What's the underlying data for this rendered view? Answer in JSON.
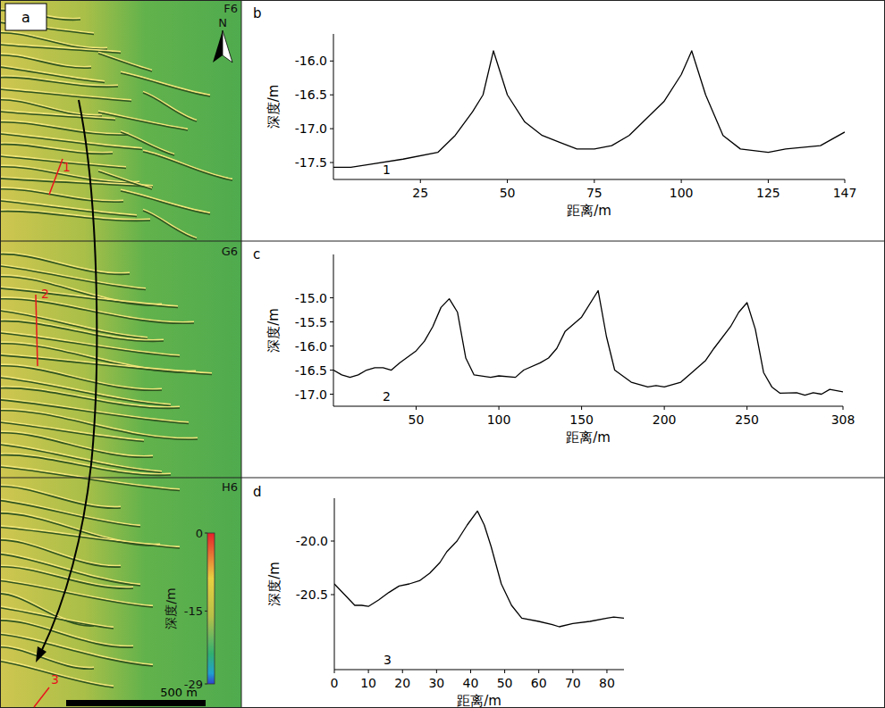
{
  "chart_data": [
    {
      "type": "line",
      "panel_label": "b",
      "annotations": [
        "1"
      ],
      "x_label": "距离/m",
      "y_label": "深度/m",
      "grid": false,
      "x": [
        0,
        5,
        10,
        20,
        30,
        35,
        40,
        43,
        46,
        50,
        55,
        60,
        65,
        70,
        75,
        80,
        85,
        90,
        95,
        100,
        103,
        107,
        112,
        117,
        125,
        130,
        140,
        147
      ],
      "series": [
        {
          "color": "#000000",
          "values": [
            -17.57,
            -17.57,
            -17.53,
            -17.45,
            -17.35,
            -17.1,
            -16.75,
            -16.5,
            -15.85,
            -16.5,
            -16.9,
            -17.1,
            -17.2,
            -17.3,
            -17.3,
            -17.25,
            -17.1,
            -16.85,
            -16.6,
            -16.2,
            -15.85,
            -16.5,
            -17.1,
            -17.3,
            -17.35,
            -17.3,
            -17.25,
            -17.05
          ]
        }
      ],
      "xlim": [
        0,
        147
      ],
      "xticks": [
        25,
        50,
        75,
        100,
        125,
        147
      ],
      "ylim": [
        -17.75,
        -15.6
      ],
      "yticks": [
        {
          "value": -16,
          "label": "-16.0"
        },
        -16.5,
        {
          "value": -17,
          "label": "-17.0"
        },
        -17.5
      ]
    },
    {
      "type": "line",
      "panel_label": "c",
      "annotations": [
        "2"
      ],
      "x_label": "距离/m",
      "y_label": "深度/m",
      "grid": false,
      "x": [
        0,
        5,
        10,
        15,
        20,
        25,
        30,
        35,
        40,
        50,
        55,
        60,
        65,
        70,
        75,
        80,
        85,
        95,
        100,
        110,
        115,
        125,
        130,
        135,
        140,
        150,
        160,
        165,
        170,
        180,
        190,
        195,
        200,
        210,
        215,
        225,
        230,
        240,
        245,
        250,
        255,
        260,
        265,
        270,
        280,
        285,
        290,
        295,
        300,
        308
      ],
      "series": [
        {
          "color": "#000000",
          "values": [
            -16.5,
            -16.6,
            -16.65,
            -16.6,
            -16.5,
            -16.45,
            -16.45,
            -16.5,
            -16.35,
            -16.1,
            -15.9,
            -15.6,
            -15.2,
            -15.02,
            -15.3,
            -16.25,
            -16.6,
            -16.65,
            -16.62,
            -16.65,
            -16.5,
            -16.35,
            -16.25,
            -16.05,
            -15.7,
            -15.4,
            -14.85,
            -15.8,
            -16.5,
            -16.75,
            -16.85,
            -16.82,
            -16.85,
            -16.75,
            -16.6,
            -16.3,
            -16.05,
            -15.6,
            -15.3,
            -15.1,
            -15.65,
            -16.55,
            -16.85,
            -16.98,
            -16.97,
            -17.02,
            -16.97,
            -17.0,
            -16.9,
            -16.95
          ]
        }
      ],
      "xlim": [
        0,
        308
      ],
      "xticks": [
        50,
        100,
        150,
        200,
        250,
        308
      ],
      "ylim": [
        -17.25,
        -14.1
      ],
      "yticks": [
        {
          "value": -15,
          "label": "-15.0"
        },
        -15.5,
        {
          "value": -16,
          "label": "-16.0"
        },
        -16.5,
        {
          "value": -17,
          "label": "-17.0"
        }
      ]
    },
    {
      "type": "line",
      "panel_label": "d",
      "annotations": [
        "3"
      ],
      "x_label": "距离/m",
      "y_label": "深度/m",
      "grid": false,
      "x": [
        0,
        3,
        6,
        8,
        10,
        13,
        16,
        19,
        22,
        25,
        28,
        31,
        33,
        36,
        39,
        42,
        44,
        46,
        49,
        52,
        55,
        60,
        64,
        66,
        70,
        75,
        80,
        82,
        85
      ],
      "series": [
        {
          "color": "#000000",
          "values": [
            -20.4,
            -20.5,
            -20.6,
            -20.6,
            -20.61,
            -20.55,
            -20.48,
            -20.42,
            -20.4,
            -20.37,
            -20.3,
            -20.2,
            -20.1,
            -20.0,
            -19.85,
            -19.72,
            -19.85,
            -20.05,
            -20.4,
            -20.6,
            -20.72,
            -20.75,
            -20.78,
            -20.8,
            -20.77,
            -20.75,
            -20.72,
            -20.71,
            -20.72
          ]
        }
      ],
      "xlim": [
        0,
        85
      ],
      "xticks": [
        0,
        10,
        20,
        30,
        40,
        50,
        60,
        70,
        80
      ],
      "ylim": [
        -21.2,
        -19.6
      ],
      "yticks": [
        {
          "value": -20,
          "label": "-20.0"
        },
        -20.5
      ]
    }
  ],
  "map": {
    "panel_label": "a",
    "north": "N",
    "tiles": [
      "F6",
      "G6",
      "H6"
    ],
    "profiles": [
      "1",
      "2",
      "3"
    ],
    "colorbar": {
      "title": "深度/m",
      "range": [
        -29,
        0
      ],
      "ticks": [
        0,
        -15,
        -29
      ]
    },
    "scale_bar": "500 m"
  }
}
